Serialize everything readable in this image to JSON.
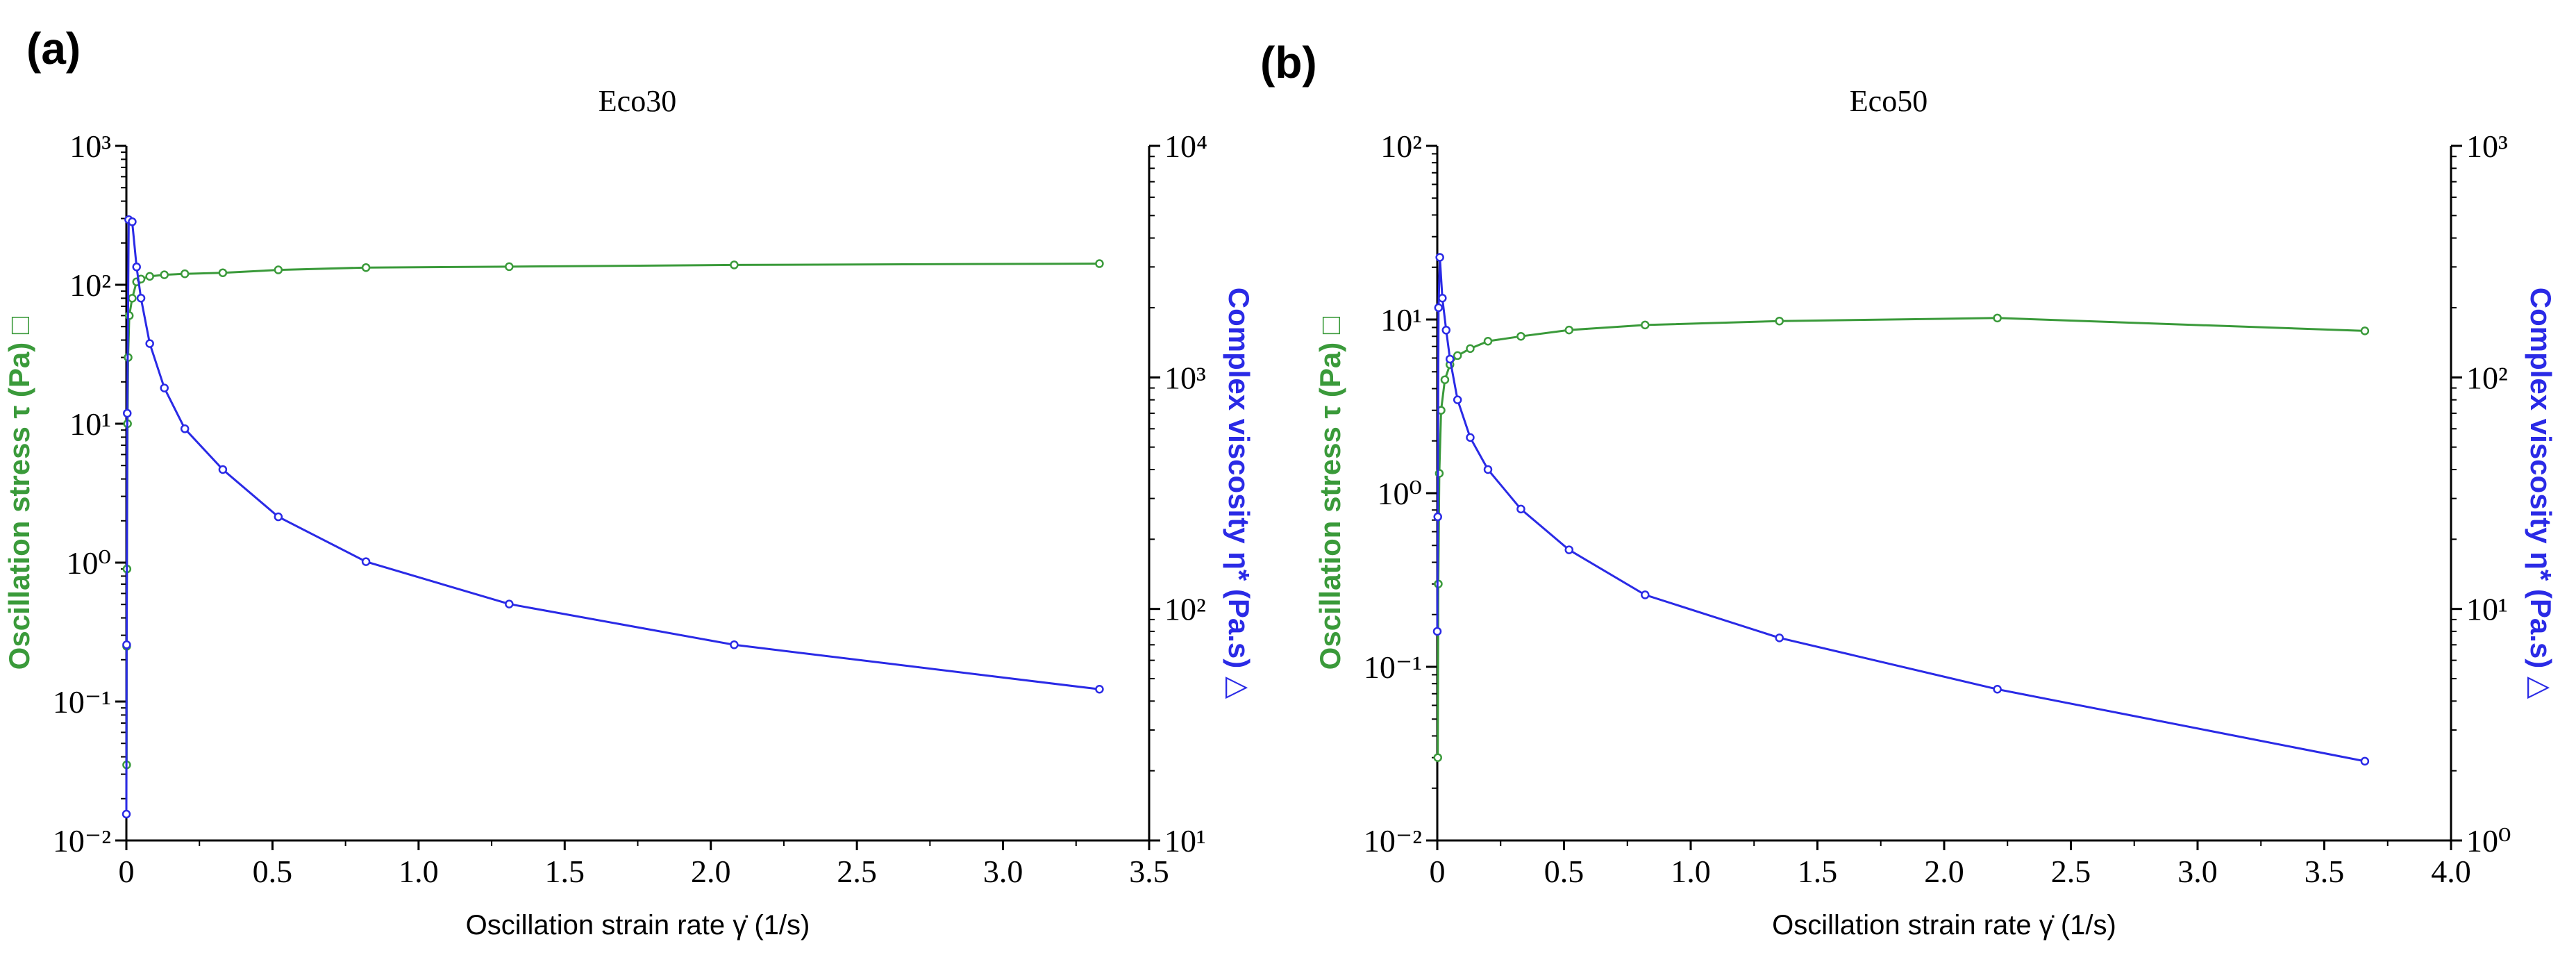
{
  "colors": {
    "stress": "#3a9a3a",
    "viscosity": "#2a2ae6",
    "axis": "#000000"
  },
  "chart_data": [
    {
      "type": "line",
      "panel_label": "(a)",
      "title": "Eco30",
      "xlabel": "Oscillation strain rate",
      "xsymbol": "γ̇",
      "xunit": "(1/s)",
      "ylabel_left": "Oscillation stress",
      "ysymbol_left": "τ",
      "yunit_left": "(Pa)",
      "ymarker_left": "□",
      "ylabel_right": "Complex viscosity",
      "ysymbol_right": "η*",
      "yunit_right": "(Pa.s)",
      "ymarker_right": "△",
      "xlim": [
        0,
        3.5
      ],
      "xticks": [
        "0",
        "0.5",
        "1.0",
        "1.5",
        "2.0",
        "2.5",
        "3.0",
        "3.5"
      ],
      "ylim_left_exp": [
        -2,
        3
      ],
      "ylim_right_exp": [
        1,
        4
      ],
      "series": [
        {
          "name": "Oscillation stress",
          "axis": "left",
          "x": [
            0.001,
            0.001,
            0.002,
            0.004,
            0.006,
            0.01,
            0.02,
            0.035,
            0.05,
            0.08,
            0.13,
            0.2,
            0.33,
            0.52,
            0.82,
            1.31,
            2.08,
            3.33
          ],
          "y": [
            0.035,
            0.25,
            0.9,
            10,
            30,
            60,
            80,
            105,
            110,
            115,
            118,
            120,
            122,
            128,
            133,
            135,
            139,
            142
          ]
        },
        {
          "name": "Complex viscosity",
          "axis": "right",
          "x": [
            0.0,
            0.001,
            0.003,
            0.008,
            0.02,
            0.035,
            0.05,
            0.08,
            0.13,
            0.2,
            0.33,
            0.52,
            0.82,
            1.31,
            2.08,
            3.33
          ],
          "y": [
            13,
            70,
            700,
            4800,
            4700,
            3000,
            2200,
            1400,
            900,
            600,
            400,
            250,
            160,
            105,
            70,
            45
          ]
        }
      ]
    },
    {
      "type": "line",
      "panel_label": "(b)",
      "title": "Eco50",
      "xlabel": "Oscillation strain rate",
      "xsymbol": "γ̇",
      "xunit": "(1/s)",
      "ylabel_left": "Oscillation stress",
      "ysymbol_left": "τ",
      "yunit_left": "(Pa)",
      "ymarker_left": "□",
      "ylabel_right": "Complex viscosity",
      "ysymbol_right": "η*",
      "yunit_right": "(Pa.s)",
      "ymarker_right": "△",
      "xlim": [
        0,
        4.0
      ],
      "xticks": [
        "0",
        "0.5",
        "1.0",
        "1.5",
        "2.0",
        "2.5",
        "3.0",
        "3.5",
        "4.0"
      ],
      "ylim_left_exp": [
        -2,
        2
      ],
      "ylim_right_exp": [
        0,
        3
      ],
      "series": [
        {
          "name": "Oscillation stress",
          "axis": "left",
          "x": [
            0.002,
            0.004,
            0.008,
            0.015,
            0.03,
            0.05,
            0.08,
            0.13,
            0.2,
            0.33,
            0.52,
            0.82,
            1.35,
            2.21,
            3.66
          ],
          "y": [
            0.03,
            0.3,
            1.3,
            3.0,
            4.5,
            5.5,
            6.2,
            6.8,
            7.5,
            8.0,
            8.7,
            9.3,
            9.8,
            10.2,
            8.6
          ]
        },
        {
          "name": "Complex viscosity",
          "axis": "right",
          "x": [
            0.0,
            0.002,
            0.005,
            0.01,
            0.02,
            0.035,
            0.05,
            0.08,
            0.13,
            0.2,
            0.33,
            0.52,
            0.82,
            1.35,
            2.21,
            3.66
          ],
          "y": [
            8,
            25,
            200,
            330,
            220,
            160,
            120,
            80,
            55,
            40,
            27,
            18,
            11.5,
            7.5,
            4.5,
            2.2
          ]
        }
      ]
    }
  ]
}
